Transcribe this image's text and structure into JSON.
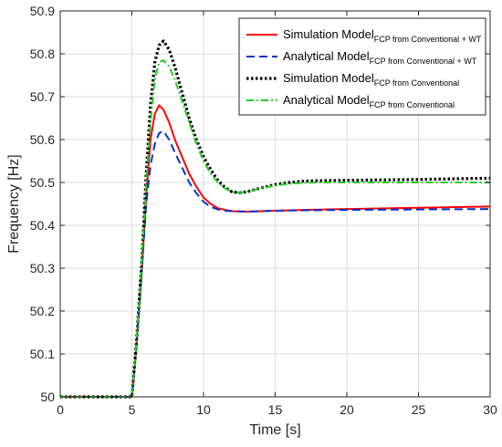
{
  "chart_data": {
    "type": "line",
    "xlabel": "Time [s]",
    "ylabel": "Frequency [Hz]",
    "xlim": [
      0,
      30
    ],
    "ylim": [
      50,
      50.9
    ],
    "xticks": [
      "0",
      "5",
      "10",
      "15",
      "20",
      "25",
      "30"
    ],
    "yticks": [
      "50",
      "50.1",
      "50.2",
      "50.3",
      "50.4",
      "50.5",
      "50.6",
      "50.7",
      "50.8",
      "50.9"
    ],
    "grid": true,
    "legend_position": "top-right",
    "series": [
      {
        "name": "Simulation Model",
        "name_subscript": "FCP from Conventional + WT",
        "color": "#ff0000",
        "style": "solid",
        "x": [
          0,
          5.0,
          5.3,
          5.7,
          6.0,
          6.3,
          6.6,
          6.9,
          7.2,
          7.6,
          8.0,
          8.5,
          9.0,
          9.5,
          10.0,
          10.5,
          11.0,
          11.5,
          12.0,
          13.0,
          14.0,
          15.0,
          17.0,
          20.0,
          25.0,
          30.0
        ],
        "y": [
          50.0,
          50.0,
          50.11,
          50.3,
          50.47,
          50.6,
          50.66,
          50.68,
          50.67,
          50.64,
          50.6,
          50.56,
          50.52,
          50.49,
          50.465,
          50.45,
          50.44,
          50.436,
          50.433,
          50.432,
          50.433,
          50.434,
          50.436,
          50.438,
          50.441,
          50.444
        ]
      },
      {
        "name": "Analytical Model",
        "name_subscript": "FCP from Conventional + WT",
        "color": "#0033cc",
        "style": "dashed",
        "x": [
          0,
          5.0,
          5.3,
          5.7,
          6.0,
          6.3,
          6.6,
          6.9,
          7.2,
          7.6,
          8.0,
          8.5,
          9.0,
          9.5,
          10.0,
          10.5,
          11.0,
          11.5,
          12.0,
          13.0,
          14.0,
          15.0,
          17.0,
          20.0,
          25.0,
          30.0
        ],
        "y": [
          50.0,
          50.0,
          50.11,
          50.3,
          50.45,
          50.54,
          50.59,
          50.615,
          50.62,
          50.6,
          50.57,
          50.535,
          50.5,
          50.475,
          50.455,
          50.443,
          50.437,
          50.434,
          50.433,
          50.432,
          50.433,
          50.434,
          50.435,
          50.436,
          50.437,
          50.438
        ]
      },
      {
        "name": "Simulation Model",
        "name_subscript": "FCP from Conventional",
        "color": "#000000",
        "style": "dotted",
        "x": [
          0,
          5.0,
          5.3,
          5.7,
          6.0,
          6.3,
          6.6,
          6.9,
          7.2,
          7.6,
          8.0,
          8.5,
          9.0,
          9.5,
          10.0,
          10.5,
          11.0,
          11.5,
          12.0,
          12.5,
          13.0,
          14.0,
          15.0,
          16.0,
          17.0,
          18.0,
          20.0,
          25.0,
          30.0
        ],
        "y": [
          50.0,
          50.0,
          50.12,
          50.32,
          50.52,
          50.68,
          50.78,
          50.82,
          50.83,
          50.81,
          50.77,
          50.71,
          50.65,
          50.6,
          50.56,
          50.53,
          50.505,
          50.488,
          50.478,
          50.476,
          50.478,
          50.487,
          50.495,
          50.5,
          50.503,
          50.504,
          50.505,
          50.507,
          50.51
        ]
      },
      {
        "name": "Analytical Model",
        "name_subscript": "FCP from Conventional",
        "color": "#22cc22",
        "style": "dashdot",
        "x": [
          0,
          5.0,
          5.3,
          5.7,
          6.0,
          6.3,
          6.6,
          6.9,
          7.2,
          7.6,
          8.0,
          8.5,
          9.0,
          9.5,
          10.0,
          10.5,
          11.0,
          11.5,
          12.0,
          12.5,
          13.0,
          14.0,
          15.0,
          16.0,
          17.0,
          18.0,
          20.0,
          25.0,
          30.0
        ],
        "y": [
          50.0,
          50.0,
          50.12,
          50.32,
          50.5,
          50.64,
          50.74,
          50.78,
          50.785,
          50.77,
          50.74,
          50.69,
          50.64,
          50.59,
          50.55,
          50.52,
          50.5,
          50.486,
          50.478,
          50.476,
          50.478,
          50.486,
          50.493,
          50.497,
          50.499,
          50.5,
          50.5,
          50.5,
          50.5
        ]
      }
    ]
  }
}
